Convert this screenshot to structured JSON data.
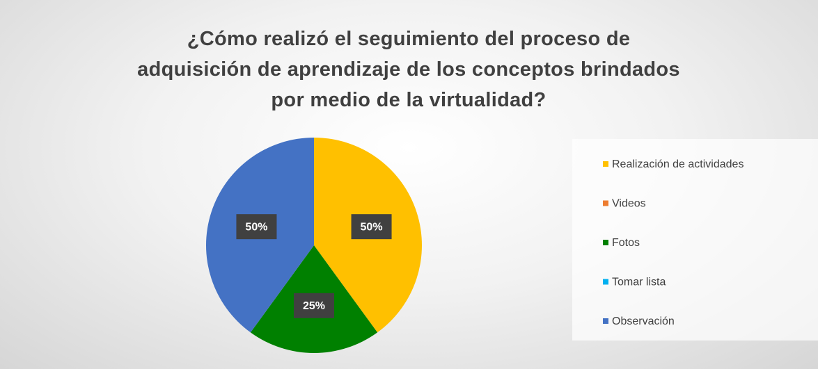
{
  "chart_data": {
    "type": "pie",
    "title": "¿Cómo realizó el seguimiento del proceso de adquisición de aprendizaje de los conceptos brindados por medio de la virtualidad?",
    "categories": [
      "Realización de actividades",
      "Videos",
      "Fotos",
      "Tomar lista",
      "Observación"
    ],
    "values": [
      50,
      0,
      25,
      0,
      50
    ],
    "value_labels": [
      "50%",
      null,
      "25%",
      null,
      "50%"
    ],
    "colors": [
      "#ffc000",
      "#ed7d31",
      "#008000",
      "#00b0f0",
      "#4472c4"
    ],
    "legend": "right"
  }
}
